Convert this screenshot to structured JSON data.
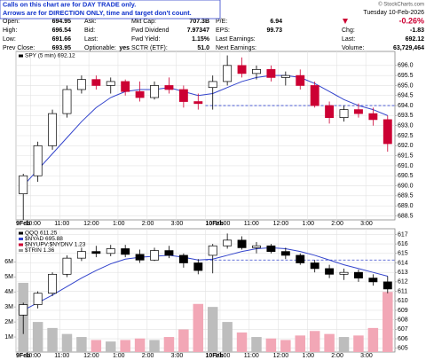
{
  "header": {
    "notice": [
      "Calls on this chart are for DAY TRADE only.",
      "Arrows are for DIRECTION ONLY, time and target don't count."
    ],
    "stats": [
      [
        [
          "Open:",
          "694.95"
        ],
        [
          "High:",
          "696.54"
        ],
        [
          "Low:",
          "691.66"
        ],
        [
          "Prev Close:",
          "693.95"
        ]
      ],
      [
        [
          "Ask:"
        ],
        [
          "Bid:"
        ],
        [
          "Last:"
        ],
        [
          "Optionable:",
          "yes"
        ]
      ],
      [
        [
          "Mkt Cap:",
          "707.3B"
        ],
        [
          "Fwd Dividend",
          "7.97347"
        ],
        [
          "Fwd Yield:",
          "1.15%"
        ],
        [
          "SCTR (ETF):",
          "51.0"
        ]
      ],
      [
        [
          "P/E:",
          "6.94"
        ],
        [
          "EPS:",
          "99.73"
        ],
        [
          "Last Earnings:"
        ],
        [
          "Next Earnings:"
        ]
      ]
    ],
    "source": "© StockCharts.com",
    "date": "Tuesday 10-Feb-2026",
    "change_pct": "-0.26%",
    "summary": [
      [
        "Chg:",
        "-1.83"
      ],
      [
        "Last:",
        "692.12"
      ],
      [
        "Volume:",
        "63,729,464"
      ]
    ]
  },
  "chart_data": [
    {
      "type": "candlestick",
      "legend": [
        {
          "name": "SPY (5 min) 692.12",
          "color": "#000000"
        }
      ],
      "categories": [
        "9Feb",
        "10:00",
        null,
        "11:00",
        null,
        "12:00",
        null,
        "1:00",
        null,
        "2:00",
        null,
        "3:00",
        null,
        "10Feb",
        "10:00",
        null,
        "11:00",
        null,
        "12:00",
        null,
        "1:00",
        null,
        "2:00",
        null,
        "3:00",
        null
      ],
      "ohlc": [
        [
          689.6,
          690.6,
          688.3,
          690.5
        ],
        [
          690.5,
          692.2,
          690.2,
          692.0
        ],
        [
          692.0,
          693.8,
          691.8,
          693.6
        ],
        [
          693.6,
          695.0,
          693.4,
          694.8
        ],
        [
          694.8,
          695.5,
          694.6,
          695.3
        ],
        [
          695.3,
          695.5,
          694.8,
          695.0
        ],
        [
          695.0,
          695.4,
          694.6,
          695.2
        ],
        [
          695.2,
          695.3,
          694.5,
          694.7
        ],
        [
          694.7,
          695.2,
          694.2,
          694.4
        ],
        [
          694.4,
          695.2,
          694.3,
          695.0
        ],
        [
          695.0,
          695.4,
          694.6,
          694.8
        ],
        [
          694.8,
          695.0,
          693.9,
          694.2
        ],
        [
          694.2,
          694.6,
          693.8,
          694.1
        ],
        [
          694.9,
          695.5,
          693.8,
          695.2
        ],
        [
          695.2,
          696.5,
          695.0,
          696.0
        ],
        [
          696.0,
          696.4,
          695.4,
          695.6
        ],
        [
          695.6,
          696.0,
          695.3,
          695.8
        ],
        [
          695.8,
          696.0,
          695.2,
          695.4
        ],
        [
          695.4,
          695.7,
          695.0,
          695.5
        ],
        [
          695.5,
          695.8,
          694.8,
          695.0
        ],
        [
          695.0,
          695.2,
          693.9,
          694.0
        ],
        [
          694.0,
          694.2,
          693.1,
          693.4
        ],
        [
          693.4,
          694.0,
          693.2,
          693.8
        ],
        [
          693.8,
          694.1,
          693.4,
          693.6
        ],
        [
          693.6,
          693.9,
          693.0,
          693.3
        ],
        [
          693.3,
          693.5,
          691.7,
          692.1
        ]
      ],
      "up_color": "#000000",
      "down_color": "#cc0033",
      "ma": {
        "color": "#3344cc",
        "values": [
          690.0,
          690.8,
          691.6,
          692.4,
          693.2,
          693.9,
          694.4,
          694.7,
          694.8,
          694.8,
          694.9,
          694.7,
          694.5,
          694.6,
          694.9,
          695.2,
          695.4,
          695.5,
          695.5,
          695.4,
          695.1,
          694.7,
          694.3,
          694.0,
          693.8,
          693.5
        ]
      },
      "reference_line": {
        "value": 694.0,
        "color": "#3344cc"
      },
      "ylim": [
        688.3,
        696.7
      ],
      "yticks": [
        688.5,
        {
          "value": 689,
          "label": "689.0"
        },
        689.5,
        {
          "value": 690,
          "label": "690.0"
        },
        690.5,
        {
          "value": 691,
          "label": "691.0"
        },
        691.5,
        {
          "value": 692,
          "label": "692.0"
        },
        692.5,
        {
          "value": 693,
          "label": "693.0"
        },
        693.5,
        {
          "value": 694,
          "label": "694.0"
        },
        694.5,
        {
          "value": 695,
          "label": "695.0"
        },
        695.5,
        {
          "value": 696,
          "label": "696.0"
        }
      ],
      "grid": true
    },
    {
      "type": "candlestick",
      "legend": [
        {
          "name": "QQQ 611.25",
          "color": "#000000"
        },
        {
          "name": "$NYAD 695.88",
          "color": "#3344cc"
        },
        {
          "name": "$NYUPV:$NYDNV 1.23",
          "color": "#cc0033"
        },
        {
          "name": "$TRIN 1.36",
          "color": "#999999"
        }
      ],
      "categories": [
        "9Feb",
        "10:00",
        null,
        "11:00",
        null,
        "12:00",
        null,
        "1:00",
        null,
        "2:00",
        null,
        "3:00",
        null,
        "10Feb",
        "10:00",
        null,
        "11:00",
        null,
        "12:00",
        null,
        "1:00",
        null,
        "2:00",
        null,
        "3:00",
        null
      ],
      "ohlc": [
        [
          608.5,
          609.8,
          606.5,
          609.6
        ],
        [
          609.6,
          611.0,
          609.2,
          610.8
        ],
        [
          610.8,
          613.0,
          610.5,
          612.8
        ],
        [
          612.8,
          614.8,
          612.5,
          614.5
        ],
        [
          614.5,
          615.6,
          614.2,
          615.2
        ],
        [
          615.2,
          615.8,
          614.6,
          615.0
        ],
        [
          615.0,
          615.9,
          614.7,
          615.5
        ],
        [
          615.5,
          615.9,
          614.6,
          614.9
        ],
        [
          614.9,
          615.4,
          614.0,
          614.3
        ],
        [
          614.3,
          615.6,
          614.2,
          615.3
        ],
        [
          615.3,
          615.8,
          614.5,
          614.8
        ],
        [
          614.8,
          615.0,
          613.5,
          614.0
        ],
        [
          614.0,
          614.4,
          612.8,
          613.2
        ],
        [
          614.8,
          616.0,
          612.9,
          615.8
        ],
        [
          615.8,
          617.1,
          615.5,
          616.4
        ],
        [
          616.4,
          616.8,
          615.4,
          615.6
        ],
        [
          615.6,
          616.2,
          615.0,
          615.8
        ],
        [
          615.8,
          616.0,
          615.0,
          615.2
        ],
        [
          615.2,
          615.6,
          614.4,
          614.8
        ],
        [
          614.8,
          615.0,
          613.8,
          614.0
        ],
        [
          614.0,
          614.3,
          613.0,
          613.4
        ],
        [
          613.4,
          613.8,
          612.4,
          612.8
        ],
        [
          612.8,
          613.4,
          612.2,
          613.0
        ],
        [
          613.0,
          613.3,
          612.0,
          612.4
        ],
        [
          612.4,
          612.8,
          611.6,
          612.0
        ],
        [
          612.0,
          612.6,
          610.8,
          611.25
        ]
      ],
      "up_color": "#000000",
      "down_color": "#000000",
      "ma": {
        "color": "#3344cc",
        "values": [
          609.0,
          609.8,
          610.6,
          611.5,
          612.4,
          613.2,
          613.9,
          614.4,
          614.6,
          614.7,
          614.8,
          614.6,
          614.3,
          614.4,
          614.8,
          615.2,
          615.5,
          615.6,
          615.5,
          615.2,
          614.8,
          614.3,
          613.8,
          613.4,
          613.0,
          612.6
        ]
      },
      "reference_line": {
        "value": 614.3,
        "color": "#3344cc"
      },
      "volume": {
        "axis": "y2",
        "up_color": "#bdbdbd",
        "down_color": "#f2a7b6",
        "values": [
          4600000,
          2000000,
          1600000,
          1200000,
          1000000,
          800000,
          700000,
          800000,
          900000,
          800000,
          1000000,
          1500000,
          3200000,
          3000000,
          2000000,
          1300000,
          1000000,
          900000,
          800000,
          1100000,
          1400000,
          1200000,
          1000000,
          1100000,
          1600000,
          4000000
        ]
      },
      "ylim": [
        604.6,
        617.6
      ],
      "yticks": [
        605,
        606,
        607,
        608,
        609,
        610,
        611,
        612,
        613,
        614,
        615,
        616,
        617
      ],
      "y2lim": [
        0,
        8200000
      ],
      "y2ticks": [
        {
          "value": 1000000,
          "label": "1M"
        },
        {
          "value": 2000000,
          "label": "2M"
        },
        {
          "value": 3000000,
          "label": "3M"
        },
        {
          "value": 4000000,
          "label": "4M"
        },
        {
          "value": 5000000,
          "label": "5M"
        },
        {
          "value": 6000000,
          "label": "6M"
        }
      ],
      "grid": true
    }
  ]
}
